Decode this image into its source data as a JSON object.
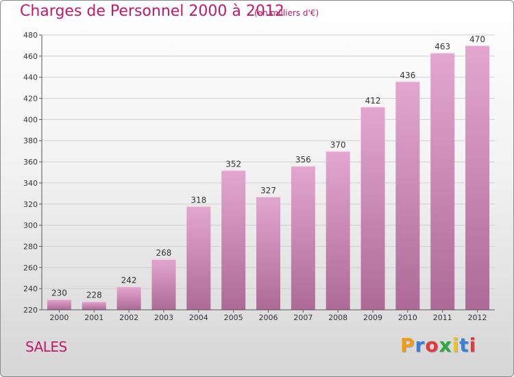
{
  "title": "Charges de Personnel 2000 à 2012",
  "subtitle": "(en milliers d'€)",
  "commune": "SALES",
  "logo": {
    "letters": [
      "P",
      "r",
      "o",
      "x",
      "i",
      "t",
      "i"
    ],
    "colors": [
      "#f39c12",
      "#3a7fd4",
      "#e53935",
      "#2eaa3d",
      "#f1c40f",
      "#3a7fd4",
      "#e53935"
    ]
  },
  "colors": {
    "title": "#c2186b",
    "bar_top": "#e3a7cf",
    "bar_bottom": "#ad6a98",
    "grid": "#cfcfcf",
    "axis": "#555555"
  },
  "chart_data": {
    "type": "bar",
    "categories": [
      "2000",
      "2001",
      "2002",
      "2003",
      "2004",
      "2005",
      "2006",
      "2007",
      "2008",
      "2009",
      "2010",
      "2011",
      "2012"
    ],
    "values": [
      230,
      228,
      242,
      268,
      318,
      352,
      327,
      356,
      370,
      412,
      436,
      463,
      470
    ],
    "ylim": [
      220,
      480
    ],
    "yticks": [
      220,
      240,
      260,
      280,
      300,
      320,
      340,
      360,
      380,
      400,
      420,
      440,
      460,
      480
    ],
    "grid": true,
    "title": "Charges de Personnel 2000 à 2012",
    "xlabel": "",
    "ylabel": ""
  }
}
